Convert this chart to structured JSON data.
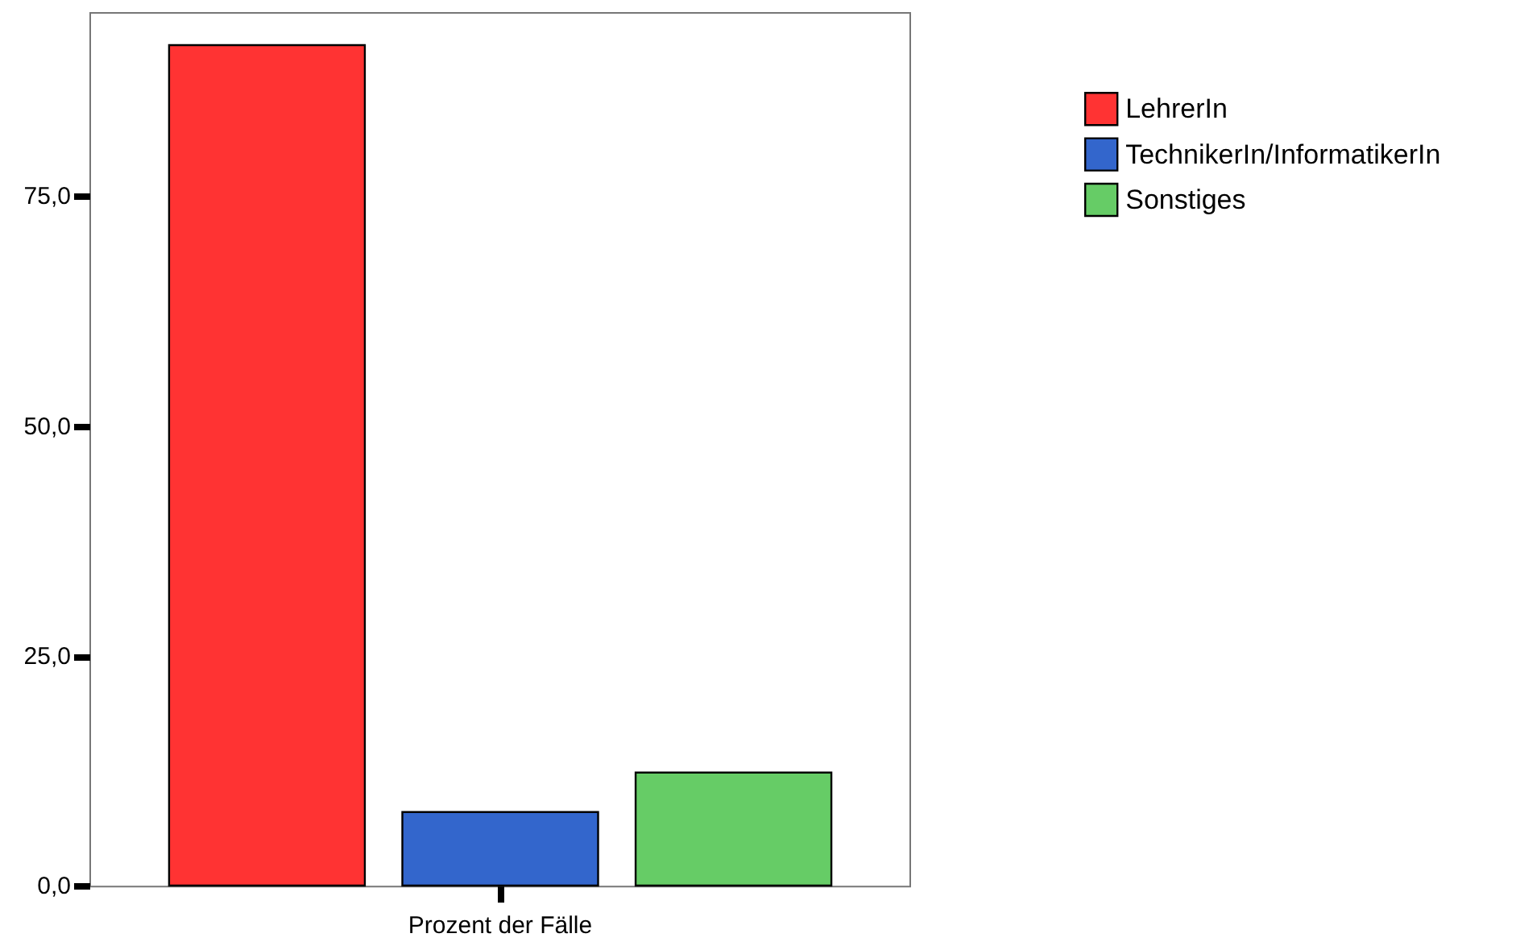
{
  "chart_data": {
    "type": "bar",
    "xlabel": "Prozent der Fälle",
    "categories": [
      null
    ],
    "series": [
      {
        "name": "LehrerIn",
        "color": "#ff3333",
        "values": [
          91.6
        ]
      },
      {
        "name": "TechnikerIn/InformatikerIn",
        "color": "#3366cc",
        "values": [
          8.2
        ]
      },
      {
        "name": "Sonstiges",
        "color": "#66cc66",
        "values": [
          12.5
        ]
      }
    ],
    "ylim": [
      0,
      95
    ],
    "yticks": [
      {
        "value": 0,
        "label": "0,0"
      },
      {
        "value": 25,
        "label": "25,0"
      },
      {
        "value": 50,
        "label": "50,0"
      },
      {
        "value": 75,
        "label": "75,0"
      }
    ],
    "grid": false,
    "legend": "top right"
  }
}
